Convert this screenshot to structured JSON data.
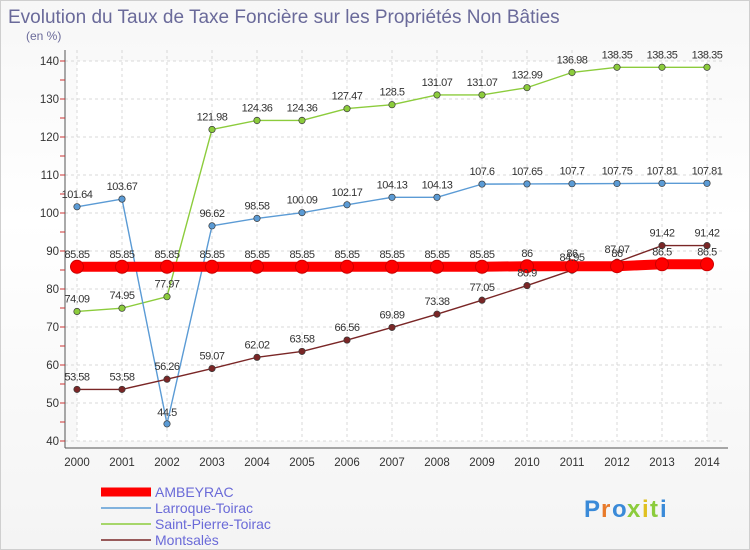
{
  "chart_data": {
    "type": "line",
    "title": "Evolution du Taux de Taxe Foncière sur les Propriétés Non Bâties",
    "ylabel": "(en %)",
    "xlabel": "",
    "ylim": [
      40,
      140
    ],
    "yticks": [
      40,
      50,
      60,
      70,
      80,
      90,
      100,
      110,
      120,
      130,
      140
    ],
    "grid": true,
    "legend_position": "bottom-left",
    "categories": [
      "2000",
      "2001",
      "2002",
      "2003",
      "2004",
      "2005",
      "2006",
      "2007",
      "2008",
      "2009",
      "2010",
      "2011",
      "2012",
      "2013",
      "2014"
    ],
    "series": [
      {
        "name": "AMBEYRAC",
        "color": "#ff0000",
        "values": [
          85.85,
          85.85,
          85.85,
          85.85,
          85.85,
          85.85,
          85.85,
          85.85,
          85.85,
          85.85,
          86,
          86,
          86,
          86.5,
          86.5
        ],
        "labels": [
          "85.85",
          "85.85",
          "85.85",
          "85.85",
          "85.85",
          "85.85",
          "85.85",
          "85.85",
          "85.85",
          "85.85",
          "86",
          "86",
          "86",
          "86.5",
          "86.5"
        ]
      },
      {
        "name": "Larroque-Toirac",
        "color": "#5b9bd5",
        "values": [
          101.64,
          103.67,
          44.5,
          96.62,
          98.58,
          100.09,
          102.17,
          104.13,
          104.13,
          107.6,
          107.65,
          107.7,
          107.75,
          107.81,
          107.81
        ],
        "labels": [
          "101.64",
          "103.67",
          "44.5",
          "96.62",
          "98.58",
          "100.09",
          "102.17",
          "104.13",
          "104.13",
          "107.6",
          "107.65",
          "107.7",
          "107.75",
          "107.81",
          "107.81"
        ]
      },
      {
        "name": "Saint-Pierre-Toirac",
        "color": "#8ccc3c",
        "values": [
          74.09,
          74.95,
          77.97,
          121.98,
          124.36,
          124.36,
          127.47,
          128.5,
          131.07,
          131.07,
          132.99,
          136.98,
          138.35,
          138.35,
          138.35
        ],
        "labels": [
          "74.09",
          "74.95",
          "77.97",
          "121.98",
          "124.36",
          "124.36",
          "127.47",
          "128.5",
          "131.07",
          "131.07",
          "132.99",
          "136.98",
          "138.35",
          "138.35",
          "138.35"
        ]
      },
      {
        "name": "Montsalès",
        "color": "#7a2626",
        "values": [
          53.58,
          53.58,
          56.26,
          59.07,
          62.02,
          63.58,
          66.56,
          69.89,
          73.38,
          77.05,
          80.9,
          84.95,
          87.07,
          91.42,
          91.42
        ],
        "labels": [
          "53.58",
          "53.58",
          "56.26",
          "59.07",
          "62.02",
          "63.58",
          "66.56",
          "69.89",
          "73.38",
          "77.05",
          "80.9",
          "84.95",
          "87.07",
          "91.42",
          "91.42"
        ]
      }
    ]
  },
  "logo": {
    "letters": [
      "P",
      "r",
      "o",
      "x",
      "i",
      "t",
      "i"
    ],
    "colors": [
      "#3a8ad8",
      "#e87a2a",
      "#3a8ad8",
      "#8ccc3c",
      "#e0c020",
      "#8ccc3c",
      "#3a8ad8"
    ]
  }
}
